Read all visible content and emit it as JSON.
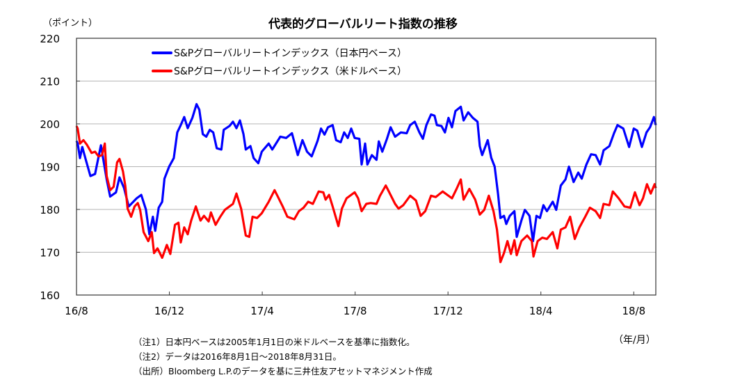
{
  "chart_data": {
    "type": "line",
    "title": "代表的グローバルリート指数の推移",
    "ylabel": "（ポイント）",
    "xlabel": "（年/月）",
    "x_unit": "months since 2016/8/1",
    "ylim": [
      160,
      220
    ],
    "xlim": [
      0,
      24.95
    ],
    "yticks": [
      160,
      170,
      180,
      190,
      200,
      210,
      220
    ],
    "xticks": [
      {
        "value": 0,
        "label": "16/8"
      },
      {
        "value": 4,
        "label": "16/12"
      },
      {
        "value": 8,
        "label": "17/4"
      },
      {
        "value": 12,
        "label": "17/8"
      },
      {
        "value": 16,
        "label": "17/12"
      },
      {
        "value": 20,
        "label": "18/4"
      },
      {
        "value": 24,
        "label": "18/8"
      }
    ],
    "grid": true,
    "legend_position": "top-left",
    "series": [
      {
        "name": "S&Pグローバルリートインデックス（日本円ベース）",
        "color": "#0000ff",
        "x": [
          0,
          0.05,
          0.15,
          0.25,
          0.4,
          0.6,
          0.8,
          1.05,
          1.3,
          1.45,
          1.7,
          1.85,
          2.05,
          2.25,
          2.59,
          2.79,
          2.99,
          3.14,
          3.29,
          3.39,
          3.54,
          3.69,
          3.79,
          3.99,
          4.19,
          4.34,
          4.49,
          4.64,
          4.79,
          4.99,
          5.17,
          5.29,
          5.44,
          5.59,
          5.74,
          5.89,
          6.04,
          6.24,
          6.34,
          6.59,
          6.74,
          6.89,
          7.04,
          7.19,
          7.29,
          7.49,
          7.63,
          7.83,
          7.98,
          8.28,
          8.43,
          8.78,
          9.03,
          9.28,
          9.53,
          9.73,
          9.93,
          10.13,
          10.38,
          10.53,
          10.68,
          10.83,
          11.03,
          11.18,
          11.38,
          11.53,
          11.68,
          11.83,
          11.98,
          12.18,
          12.28,
          12.43,
          12.53,
          12.72,
          12.92,
          13.02,
          13.17,
          13.37,
          13.53,
          13.72,
          13.97,
          14.22,
          14.37,
          14.57,
          14.77,
          14.92,
          15.07,
          15.27,
          15.42,
          15.52,
          15.72,
          15.87,
          16.02,
          16.17,
          16.32,
          16.55,
          16.67,
          16.87,
          17.07,
          17.27,
          17.37,
          17.47,
          17.71,
          17.86,
          18.01,
          18.16,
          18.26,
          18.41,
          18.51,
          18.66,
          18.86,
          18.96,
          19.16,
          19.31,
          19.51,
          19.66,
          19.81,
          19.96,
          20.11,
          20.26,
          20.51,
          20.66,
          20.86,
          21.06,
          21.21,
          21.41,
          21.61,
          21.76,
          21.96,
          22.16,
          22.36,
          22.55,
          22.7,
          22.95,
          23.15,
          23.3,
          23.55,
          23.8,
          24.0,
          24.15,
          24.35,
          24.55,
          24.7,
          24.87,
          24.95
        ],
        "y": [
          196,
          195.4,
          192,
          194.6,
          191.6,
          187.8,
          188.3,
          195,
          187,
          183,
          184,
          187.5,
          185,
          180.7,
          182.6,
          183.4,
          180,
          174.2,
          178.3,
          175,
          180.4,
          181.8,
          187.2,
          190,
          192,
          198,
          199.7,
          201.6,
          199,
          201.4,
          204.6,
          203.3,
          197.6,
          197,
          198.6,
          198,
          194.3,
          194,
          198.6,
          199.5,
          200.5,
          199,
          200.8,
          197.6,
          194,
          194.8,
          192,
          190.8,
          193.5,
          195.4,
          194,
          197,
          196.7,
          197.8,
          192.7,
          196.2,
          193.5,
          192.4,
          196,
          198.9,
          197.5,
          199.2,
          199.7,
          196.2,
          195.7,
          198,
          196.7,
          198.9,
          196.7,
          196.5,
          190.5,
          195.4,
          190.5,
          192.7,
          191.6,
          195.9,
          193.5,
          196.5,
          199.2,
          197,
          198,
          197.8,
          199.7,
          200.5,
          198,
          196.5,
          199.7,
          202.2,
          201.9,
          199.7,
          199.5,
          198,
          201.4,
          199.2,
          203,
          204,
          200.8,
          202.7,
          201.4,
          200.5,
          194.8,
          192.7,
          196.2,
          192.1,
          190,
          183.4,
          178,
          178.5,
          176.6,
          178.5,
          179.6,
          173.6,
          177.4,
          179.9,
          178.5,
          172.6,
          178.5,
          178,
          181,
          179.6,
          181.8,
          179.9,
          185.6,
          187,
          190,
          186.4,
          188.6,
          187.2,
          190.5,
          192.9,
          192.7,
          190.5,
          193.8,
          194.8,
          197.8,
          199.7,
          198.9,
          194.6,
          198.9,
          198.4,
          194.6,
          198,
          199.2,
          201.6,
          199.7
        ]
      },
      {
        "name": "S&Pグローバルリートインデックス（米ドルベース）",
        "color": "#ff0000",
        "x": [
          0,
          0.05,
          0.15,
          0.3,
          0.45,
          0.65,
          0.8,
          0.95,
          1.1,
          1.22,
          1.3,
          1.45,
          1.6,
          1.75,
          1.85,
          2.0,
          2.1,
          2.2,
          2.35,
          2.5,
          2.64,
          2.74,
          2.89,
          3.09,
          3.24,
          3.34,
          3.49,
          3.69,
          3.89,
          4.04,
          4.24,
          4.39,
          4.49,
          4.64,
          4.79,
          4.94,
          5.14,
          5.34,
          5.49,
          5.69,
          5.79,
          5.99,
          6.19,
          6.39,
          6.59,
          6.74,
          6.89,
          7.09,
          7.29,
          7.44,
          7.58,
          7.78,
          7.98,
          8.28,
          8.53,
          8.68,
          8.88,
          9.08,
          9.38,
          9.58,
          9.78,
          9.98,
          10.18,
          10.43,
          10.63,
          10.73,
          10.88,
          11.03,
          11.28,
          11.43,
          11.63,
          11.83,
          11.98,
          12.13,
          12.28,
          12.48,
          12.67,
          12.92,
          13.07,
          13.32,
          13.47,
          13.72,
          13.87,
          14.07,
          14.37,
          14.62,
          14.82,
          15.02,
          15.27,
          15.47,
          15.77,
          15.97,
          16.17,
          16.37,
          16.55,
          16.67,
          16.92,
          17.17,
          17.37,
          17.56,
          17.76,
          17.96,
          18.11,
          18.26,
          18.41,
          18.56,
          18.71,
          18.86,
          18.96,
          19.16,
          19.41,
          19.61,
          19.68,
          19.86,
          20.06,
          20.26,
          20.51,
          20.71,
          20.86,
          21.06,
          21.26,
          21.46,
          21.66,
          21.91,
          22.11,
          22.36,
          22.55,
          22.7,
          22.95,
          23.1,
          23.35,
          23.6,
          23.85,
          24.05,
          24.25,
          24.4,
          24.57,
          24.73,
          24.9,
          24.95
        ],
        "y": [
          199.5,
          198.9,
          195.4,
          196.2,
          195.1,
          193.2,
          193.5,
          192.4,
          192.7,
          195.4,
          187.8,
          184.5,
          185.3,
          191,
          191.8,
          188.9,
          185.6,
          180.2,
          178.3,
          180.7,
          181.5,
          179.9,
          174.7,
          172.6,
          174.7,
          169.8,
          170.9,
          168.7,
          171.7,
          169.6,
          176.4,
          176.9,
          172.3,
          175.8,
          174.2,
          177.4,
          180.7,
          177.4,
          178.5,
          177.2,
          179.3,
          176.4,
          178.3,
          179.9,
          180.7,
          181.3,
          183.7,
          180.2,
          173.9,
          173.6,
          178.3,
          178,
          179.1,
          181.8,
          184.5,
          182.9,
          180.7,
          178.3,
          177.7,
          179.6,
          180.4,
          181.8,
          181.3,
          184.2,
          184,
          182.3,
          183.4,
          180.7,
          176.1,
          180.2,
          182.6,
          183.4,
          184,
          182.6,
          179.6,
          181.3,
          181.5,
          181.3,
          183.2,
          185.6,
          184,
          181.3,
          180.2,
          181,
          183.2,
          182.1,
          178.5,
          179.6,
          183.2,
          182.9,
          184.2,
          183.4,
          182.6,
          184.8,
          187,
          182.3,
          184.8,
          182.3,
          178.8,
          179.9,
          183.2,
          179.6,
          175.3,
          167.7,
          169.8,
          172.6,
          169.6,
          172.8,
          169.3,
          172.6,
          173.9,
          172.6,
          169,
          172.6,
          173.4,
          173.1,
          174.7,
          170.9,
          175.3,
          175.8,
          178.3,
          173.1,
          175.8,
          178.3,
          180.4,
          179.6,
          178,
          181.3,
          181,
          184.2,
          182.6,
          180.7,
          180.4,
          184,
          181,
          182.6,
          185.9,
          183.7,
          185.9,
          185
        ]
      }
    ],
    "notes": [
      "（注1）日本円ベースは2005年1月1日の米ドルベースを基準に指数化。",
      "（注2）データは2016年8月1日～2018年8月31日。",
      "（出所）Bloomberg L.P.のデータを基に三井住友アセットマネジメント作成"
    ]
  }
}
